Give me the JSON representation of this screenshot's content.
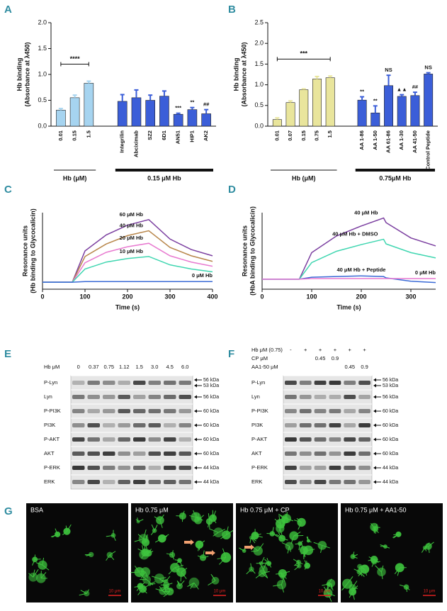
{
  "chart_data": [
    {
      "type": "bar",
      "letter": "A",
      "y_label": [
        "Hb binding",
        "(Absorbance at λ450)"
      ],
      "ylim": [
        0,
        2
      ],
      "yticks": [
        {
          "value": 0,
          "label": "0.0"
        },
        {
          "value": 0.5,
          "label": "0.5"
        },
        {
          "value": 1,
          "label": "1.0"
        },
        {
          "value": 1.5,
          "label": "1.5"
        },
        {
          "value": 2,
          "label": "2.0"
        }
      ],
      "series": [
        {
          "name": "Hb (μM)",
          "color": "#a6d4f0",
          "categories": [
            "0.01",
            "0.15",
            "1.5"
          ],
          "values": [
            0.31,
            0.55,
            0.83
          ],
          "errors": [
            0.03,
            0.05,
            0.04
          ],
          "annotations": [
            null,
            null,
            null
          ],
          "bracket": "****"
        },
        {
          "name": "0.15 μM Hb",
          "color": "#3b5ed8",
          "categories": [
            "Integrilin",
            "Abciximab",
            "SZ2",
            "6D1",
            "AN51",
            "HIP1",
            "AK2"
          ],
          "values": [
            0.48,
            0.55,
            0.5,
            0.58,
            0.23,
            0.32,
            0.24
          ],
          "errors": [
            0.13,
            0.15,
            0.1,
            0.1,
            0.02,
            0.04,
            0.08
          ],
          "annotations": [
            null,
            null,
            null,
            null,
            "***",
            "**",
            "##"
          ]
        }
      ]
    },
    {
      "type": "bar",
      "letter": "B",
      "y_label": [
        "Hb binding",
        "(Absorbance at λ450)"
      ],
      "ylim": [
        0,
        2.5
      ],
      "yticks": [
        {
          "value": 0,
          "label": "0.0"
        },
        {
          "value": 0.5,
          "label": "0.5"
        },
        {
          "value": 1,
          "label": "1.0"
        },
        {
          "value": 1.5,
          "label": "1.5"
        },
        {
          "value": 2,
          "label": "2.0"
        },
        {
          "value": 2.5,
          "label": "2.5"
        }
      ],
      "series": [
        {
          "name": "Hb (μM)",
          "color": "#e9e59c",
          "categories": [
            "0.01",
            "0.07",
            "0.15",
            "0.75",
            "1.5"
          ],
          "values": [
            0.16,
            0.57,
            0.88,
            1.14,
            1.17
          ],
          "errors": [
            0.04,
            0.04,
            0.02,
            0.06,
            0.04
          ],
          "annotations": [
            null,
            null,
            null,
            null,
            null
          ],
          "bracket": "***"
        },
        {
          "name": "0.75μM Hb",
          "color": "#3b5ed8",
          "categories": [
            "AA 1-86",
            "AA 1-50",
            "AA 61-86",
            "AA 1-30",
            "AA 41-50",
            "Control Peptide"
          ],
          "values": [
            0.63,
            0.32,
            0.98,
            0.72,
            0.74,
            1.26
          ],
          "errors": [
            0.08,
            0.17,
            0.25,
            0.04,
            0.08,
            0.03
          ],
          "annotations": [
            "**",
            "**",
            "NS",
            "▲▲",
            "##",
            "NS"
          ]
        }
      ]
    },
    {
      "type": "line",
      "letter": "C",
      "x_label": "Time (s)",
      "y_label": [
        "Resonance units",
        "(Hb binding to Glycocalicin)"
      ],
      "xlim": [
        0,
        400
      ],
      "xticks": [
        0,
        100,
        200,
        300,
        400
      ],
      "ylim": [
        -10,
        100
      ],
      "x": [
        0,
        70,
        100,
        150,
        200,
        250,
        300,
        350,
        400
      ],
      "series": [
        {
          "name": "60 μM Hb",
          "color": "#7b3fa0",
          "values": [
            0,
            0,
            45,
            68,
            82,
            90,
            62,
            47,
            38
          ]
        },
        {
          "name": "40 μM Hb",
          "color": "#b8864a",
          "values": [
            0,
            0,
            37,
            55,
            67,
            74,
            50,
            38,
            30
          ]
        },
        {
          "name": "20 μM Hb",
          "color": "#e87ad0",
          "values": [
            0,
            0,
            28,
            43,
            51,
            56,
            38,
            29,
            23
          ]
        },
        {
          "name": "10 μM Hb",
          "color": "#3fd6b0",
          "values": [
            0,
            0,
            19,
            29,
            34,
            37,
            25,
            19,
            15
          ]
        },
        {
          "name": "0 μM Hb",
          "color": "#3a6ad6",
          "values": [
            0,
            0,
            1,
            1,
            1,
            1,
            1,
            1,
            1
          ]
        }
      ]
    },
    {
      "type": "line",
      "letter": "D",
      "x_label": "Time (s)",
      "y_label": [
        "Resonance units",
        "(HbA binding to Glycocalicin)"
      ],
      "xlim": [
        0,
        350
      ],
      "xticks": [
        0,
        100,
        200,
        300
      ],
      "ylim": [
        -15,
        100
      ],
      "x": [
        0,
        75,
        100,
        150,
        200,
        245,
        250,
        300,
        350
      ],
      "series": [
        {
          "name": "40 μM Hb",
          "color": "#7b3fa0",
          "values": [
            0,
            0,
            40,
            65,
            80,
            92,
            85,
            62,
            50
          ]
        },
        {
          "name": "40 μM Hb + DMSO",
          "color": "#3fd6b0",
          "values": [
            0,
            0,
            25,
            42,
            52,
            60,
            53,
            40,
            32
          ]
        },
        {
          "name": "40 μM Hb + Peptide",
          "color": "#3a6ad6",
          "values": [
            0,
            0,
            3,
            4,
            5,
            4,
            2,
            -3,
            -5
          ]
        },
        {
          "name": "0 μM Hb",
          "color": "#e87ad0",
          "values": [
            0,
            0,
            1,
            1,
            1,
            1,
            1,
            1,
            1
          ]
        }
      ]
    }
  ],
  "blots": [
    {
      "letter": "E",
      "headers": [
        {
          "label": "Hb μM",
          "columns": [
            "0",
            "0.37",
            "0.75",
            "1.12",
            "1.5",
            "3.0",
            "4.5",
            "6.0"
          ]
        }
      ],
      "rows": [
        {
          "label": "P-Lyn",
          "markers": [
            "56 kDa",
            "53 kDa"
          ]
        },
        {
          "label": "Lyn",
          "markers": [
            "56 kDa"
          ]
        },
        {
          "label": "P-PI3K",
          "markers": [
            "60 kDa"
          ]
        },
        {
          "label": "PI3K",
          "markers": [
            "60 kDa"
          ]
        },
        {
          "label": "P-AKT",
          "markers": [
            "60 kDa"
          ]
        },
        {
          "label": "AKT",
          "markers": [
            "60 kDa"
          ]
        },
        {
          "label": "P-ERK",
          "markers": [
            "44 kDa"
          ]
        },
        {
          "label": "ERK",
          "markers": [
            "44 kDa"
          ]
        }
      ]
    },
    {
      "letter": "F",
      "headers": [
        {
          "label": "Hb μM (0.75)",
          "columns": [
            "-",
            "+",
            "+",
            "+",
            "+",
            "+"
          ]
        },
        {
          "label": "CP  μM",
          "columns": [
            null,
            null,
            "0.45",
            "0.9",
            null,
            null
          ]
        },
        {
          "label": "AA1-50  μM",
          "columns": [
            null,
            null,
            null,
            null,
            "0.45",
            "0.9"
          ]
        }
      ],
      "rows": [
        {
          "label": "P-Lyn",
          "markers": [
            "56 kDa",
            "53 kDa"
          ]
        },
        {
          "label": "Lyn",
          "markers": [
            "56 kDa"
          ]
        },
        {
          "label": "P-PI3K",
          "markers": [
            "60 kDa"
          ]
        },
        {
          "label": "PI3K",
          "markers": [
            "60 kDa"
          ]
        },
        {
          "label": "P-AKT",
          "markers": [
            "60 kDa"
          ]
        },
        {
          "label": "AKT",
          "markers": [
            "60 kDa"
          ]
        },
        {
          "label": "P-ERK",
          "markers": [
            "44 kDa"
          ]
        },
        {
          "label": "ERK",
          "markers": [
            "44 kDa"
          ]
        }
      ]
    }
  ],
  "micrographs": {
    "letter": "G",
    "panels": [
      {
        "label": "BSA",
        "scale_bar": "10 μm"
      },
      {
        "label": "Hb 0.75 μM",
        "scale_bar": "10 μm"
      },
      {
        "label": "Hb 0.75 μM + CP",
        "scale_bar": "10 μm"
      },
      {
        "label": "Hb 0.75 μM + AA1-50",
        "scale_bar": "10 μm"
      }
    ]
  }
}
